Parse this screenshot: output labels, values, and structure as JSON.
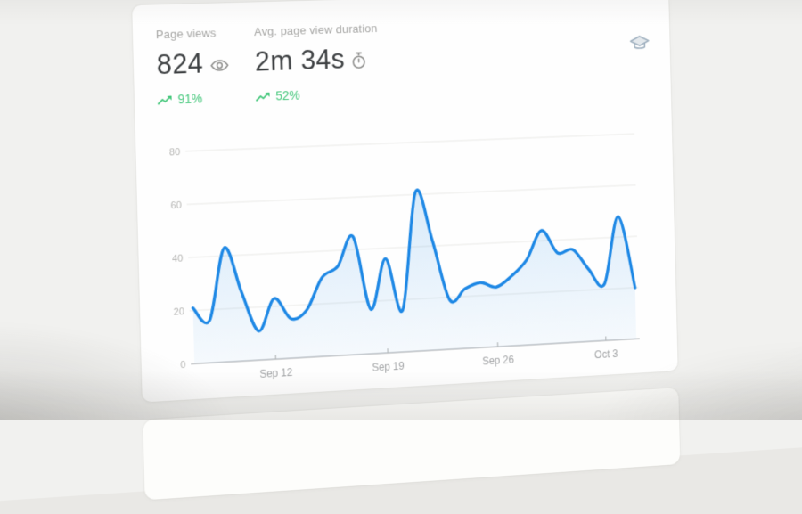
{
  "card": {
    "name": "Analytics overview card"
  },
  "stats": [
    {
      "id": "page-views",
      "label": "Page views",
      "value": "824",
      "value_icon": "eye-icon",
      "change": "91%",
      "trend": "up",
      "trend_icon": "trending-up-icon"
    },
    {
      "id": "avg-page-view-duration",
      "label": "Avg. page view duration",
      "value": "2m 34s",
      "value_icon": "stopwatch-icon",
      "change": "52%",
      "trend": "up",
      "trend_icon": "trending-up-icon"
    }
  ],
  "header": {
    "icon": "graduation-cap-icon"
  },
  "colors": {
    "line": "#1e88e5",
    "area_top": "rgba(30,136,229,0.17)",
    "area_bottom": "rgba(30,136,229,0.04)",
    "gridline": "#e9e9e7",
    "axis_line": "#bcbfc2",
    "tick": "#b9b9b7",
    "y_label": "#b5b5b3",
    "x_label": "#a2a4a6",
    "stat_label": "#a6a6a4",
    "stat_value": "#3e4143",
    "positive": "#47c87d",
    "icon_gray": "#8e8e8c",
    "cap_icon": "#9fb0bf"
  },
  "chart_data": {
    "type": "area",
    "x_unit": "day",
    "values": [
      21,
      16,
      43,
      26,
      11,
      23,
      15,
      18,
      30,
      34,
      45,
      17,
      36,
      16,
      61,
      42,
      19,
      23,
      25,
      23,
      27,
      33,
      44,
      35,
      36,
      28,
      22,
      48,
      20
    ],
    "x_tick_positions": [
      5,
      12,
      19,
      26
    ],
    "x_tick_labels": [
      "Sep 12",
      "Sep 19",
      "Sep 26",
      "Oct 3"
    ],
    "y_ticks": [
      0,
      20,
      40,
      60,
      80
    ],
    "ylim": [
      0,
      80
    ],
    "grid": true,
    "legend": "none",
    "line_color": "#1e88e5",
    "smooth": true
  }
}
